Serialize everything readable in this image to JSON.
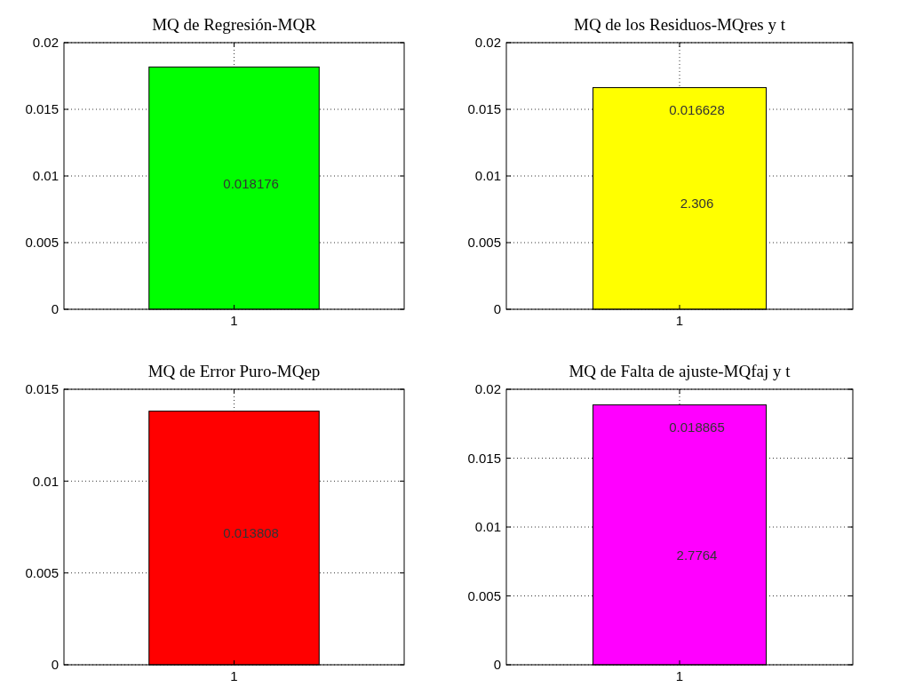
{
  "chart_data": [
    {
      "type": "bar",
      "title": "MQ de Regresión-MQR",
      "categories": [
        "1"
      ],
      "values": [
        0.018176
      ],
      "color": "#00ff00",
      "value_labels": [
        "0.018176"
      ],
      "ylim": [
        0,
        0.02
      ],
      "yticks": [
        0,
        0.005,
        0.01,
        0.015,
        0.02
      ],
      "grid": true
    },
    {
      "type": "bar",
      "title": "MQ de los Residuos-MQres y t",
      "categories": [
        "1"
      ],
      "values": [
        0.016628
      ],
      "color": "#ffff00",
      "value_labels": [
        "0.016628"
      ],
      "annotations": [
        "2.306"
      ],
      "ylim": [
        0,
        0.02
      ],
      "yticks": [
        0,
        0.005,
        0.01,
        0.015,
        0.02
      ],
      "grid": true
    },
    {
      "type": "bar",
      "title": "MQ de Error Puro-MQep",
      "categories": [
        "1"
      ],
      "values": [
        0.013808
      ],
      "color": "#ff0000",
      "value_labels": [
        "0.013808"
      ],
      "ylim": [
        0,
        0.015
      ],
      "yticks": [
        0,
        0.005,
        0.01,
        0.015
      ],
      "grid": true
    },
    {
      "type": "bar",
      "title": "MQ de Falta de ajuste-MQfaj y t",
      "categories": [
        "1"
      ],
      "values": [
        0.018865
      ],
      "color": "#ff00ff",
      "value_labels": [
        "0.018865"
      ],
      "annotations": [
        "2.7764"
      ],
      "ylim": [
        0,
        0.02
      ],
      "yticks": [
        0,
        0.005,
        0.01,
        0.015,
        0.02
      ],
      "grid": true
    }
  ]
}
